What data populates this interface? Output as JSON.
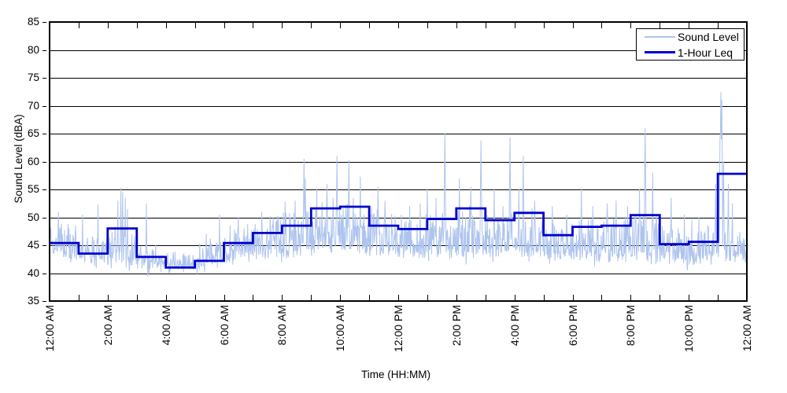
{
  "chart_data": {
    "type": "line",
    "title": "",
    "xlabel": "Time (HH:MM)",
    "ylabel": "Sound Level (dBA)",
    "ylim": [
      35,
      85
    ],
    "ytick_interval": 5,
    "ytick_values": [
      35,
      40,
      45,
      50,
      55,
      60,
      65,
      70,
      75,
      80,
      85
    ],
    "x_range_hours": [
      0,
      24
    ],
    "xtick_interval_hours": 1,
    "xtick_label_interval_hours": 2,
    "xtick_labels": [
      "12:00 AM",
      "2:00 AM",
      "4:00 AM",
      "6:00 AM",
      "8:00 AM",
      "10:00 AM",
      "12:00 PM",
      "2:00 PM",
      "4:00 PM",
      "6:00 PM",
      "8:00 PM",
      "10:00 PM",
      "12:00 AM"
    ],
    "grid": "horizontal",
    "legend": {
      "position": "top-right",
      "entries": [
        {
          "label": "Sound Level",
          "color": "#aec4ee",
          "line_width": 1
        },
        {
          "label": "1-Hour Leq",
          "color": "#0000cd",
          "line_width": 3
        }
      ]
    },
    "series": [
      {
        "name": "Sound Level",
        "type": "noisy-line",
        "color": "#aec4ee",
        "samples_per_hour": 66,
        "base_nodes": [
          43.4,
          41.8,
          41.6,
          41.0,
          40.3,
          40.4,
          41.6,
          42.8,
          43.0,
          43.8,
          43.6,
          42.8,
          42.8,
          42.8,
          42.8,
          42.8,
          42.8,
          42.3,
          42.2,
          42.2,
          41.8,
          41.5,
          41.3,
          41.8,
          42.5
        ],
        "hour_spread": [
          6.0,
          4.5,
          6.0,
          3.0,
          2.2,
          4.0,
          5.5,
          6.5,
          7.5,
          8.5,
          8.5,
          7.5,
          7.0,
          7.5,
          8.5,
          7.5,
          8.0,
          6.5,
          7.0,
          7.0,
          8.5,
          6.0,
          6.0,
          4.5
        ],
        "spikes": [
          [
            0.05,
            48.2
          ],
          [
            0.3,
            51.0
          ],
          [
            1.13,
            50.5
          ],
          [
            1.67,
            52.3
          ],
          [
            2.35,
            53.0
          ],
          [
            2.45,
            55.3
          ],
          [
            2.52,
            54.5
          ],
          [
            2.6,
            53.5
          ],
          [
            2.68,
            51.5
          ],
          [
            3.34,
            52.5
          ],
          [
            5.4,
            47.0
          ],
          [
            5.85,
            50.5
          ],
          [
            6.5,
            50.0
          ],
          [
            7.3,
            51.0
          ],
          [
            7.7,
            50.0
          ],
          [
            8.1,
            52.8
          ],
          [
            8.45,
            53.0
          ],
          [
            8.75,
            60.5
          ],
          [
            8.8,
            57.0
          ],
          [
            9.2,
            55.0
          ],
          [
            9.55,
            56.0
          ],
          [
            9.75,
            53.5
          ],
          [
            9.9,
            61.0
          ],
          [
            10.3,
            60.3
          ],
          [
            10.45,
            53.5
          ],
          [
            10.7,
            57.3
          ],
          [
            11.3,
            55.5
          ],
          [
            11.55,
            53.0
          ],
          [
            12.1,
            50.5
          ],
          [
            12.4,
            52.0
          ],
          [
            12.75,
            52.5
          ],
          [
            13.0,
            55.0
          ],
          [
            13.3,
            53.5
          ],
          [
            13.6,
            65.0
          ],
          [
            14.1,
            57.0
          ],
          [
            14.5,
            55.5
          ],
          [
            14.85,
            63.8
          ],
          [
            15.3,
            55.0
          ],
          [
            15.6,
            52.0
          ],
          [
            15.85,
            64.3
          ],
          [
            16.15,
            55.0
          ],
          [
            16.3,
            61.0
          ],
          [
            16.7,
            53.0
          ],
          [
            17.3,
            52.0
          ],
          [
            17.8,
            50.5
          ],
          [
            18.3,
            55.3
          ],
          [
            18.7,
            52.0
          ],
          [
            19.2,
            52.5
          ],
          [
            19.5,
            53.0
          ],
          [
            19.9,
            52.0
          ],
          [
            20.3,
            55.0
          ],
          [
            20.5,
            66.0
          ],
          [
            20.75,
            58.0
          ],
          [
            21.4,
            53.5
          ],
          [
            21.85,
            50.5
          ],
          [
            22.1,
            49.5
          ],
          [
            22.35,
            50.0
          ],
          [
            22.92,
            56.0
          ],
          [
            23.07,
            64.0
          ],
          [
            23.1,
            72.5
          ],
          [
            23.14,
            71.0
          ],
          [
            23.2,
            60.0
          ],
          [
            23.37,
            56.0
          ],
          [
            23.5,
            52.5
          ]
        ]
      },
      {
        "name": "1-Hour Leq",
        "type": "stairs",
        "color": "#0000cd",
        "hour_values": [
          45.4,
          43.5,
          48.0,
          42.9,
          41.0,
          42.2,
          45.4,
          47.2,
          48.5,
          51.6,
          51.9,
          48.5,
          47.9,
          49.7,
          51.6,
          49.5,
          50.8,
          46.8,
          48.3,
          48.5,
          50.4,
          45.2,
          45.6,
          57.8
        ]
      }
    ]
  }
}
